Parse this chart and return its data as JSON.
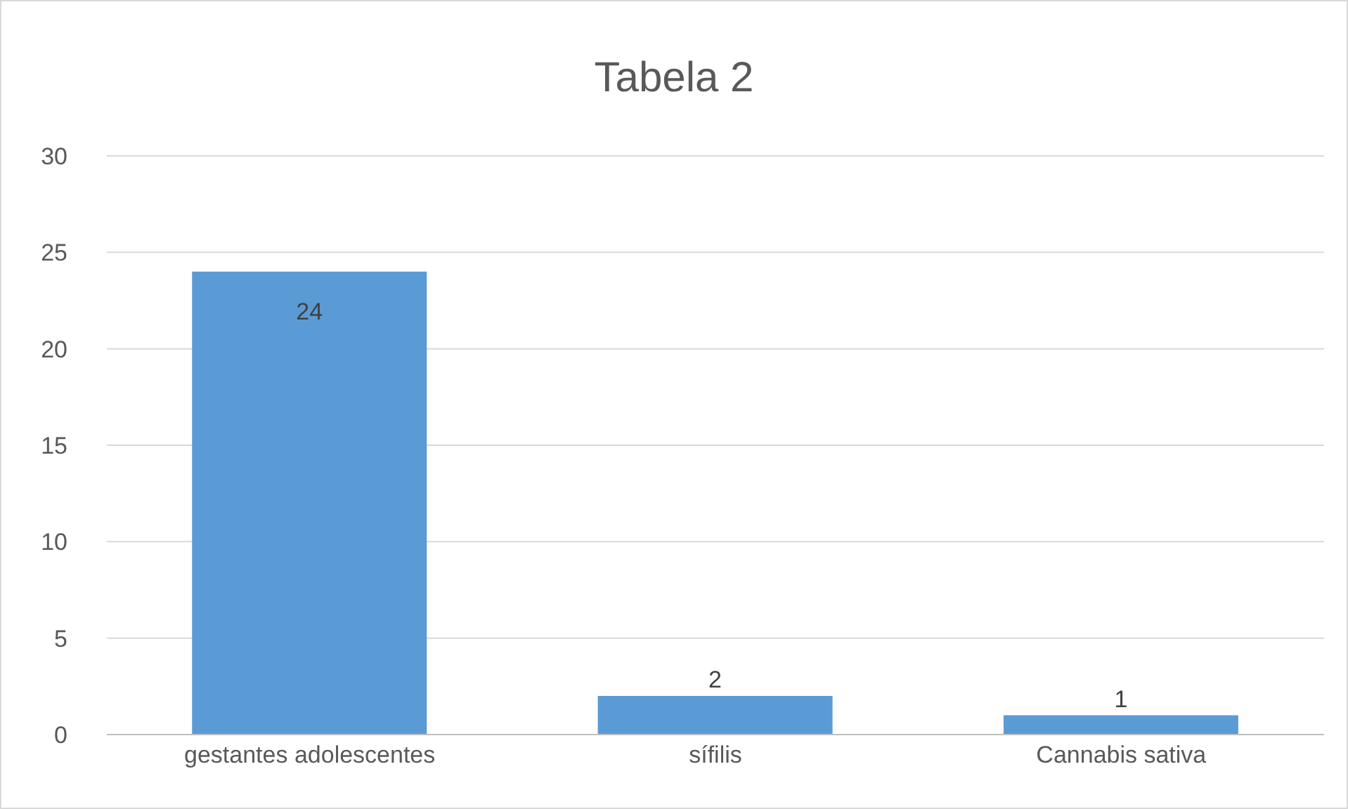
{
  "chart_data": {
    "type": "bar",
    "title": "Tabela 2",
    "categories": [
      "gestantes adolescentes",
      "sífilis",
      "Cannabis sativa"
    ],
    "values": [
      24,
      2,
      1
    ],
    "color": "#5b9bd5",
    "ylim": [
      0,
      30
    ],
    "yticks": [
      0,
      5,
      10,
      15,
      20,
      25,
      30
    ],
    "grid": "y",
    "data_labels": true
  }
}
